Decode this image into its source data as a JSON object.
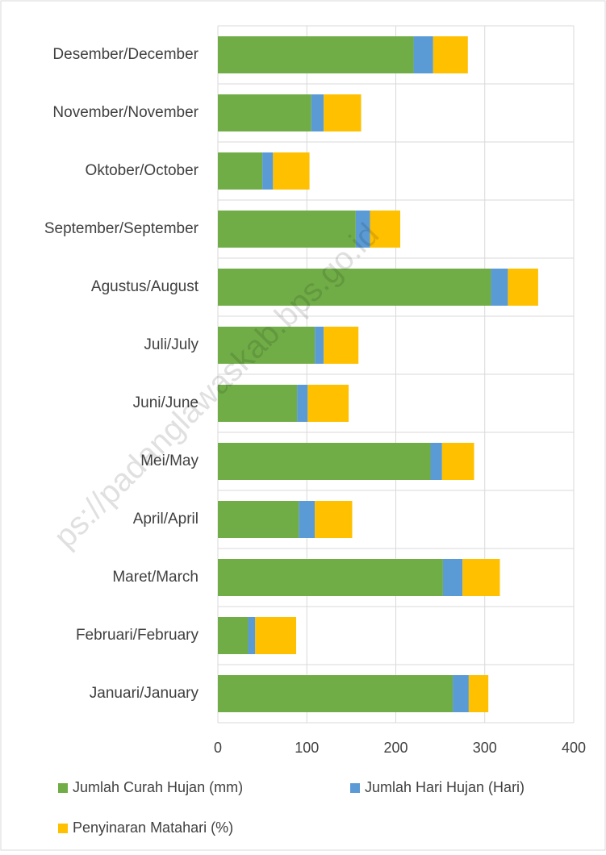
{
  "chart_data": {
    "type": "stacked_barh",
    "categories": [
      "Januari/January",
      "Februari/February",
      "Maret/March",
      "April/April",
      "Mei/May",
      "Juni/June",
      "Juli/July",
      "Agustus/August",
      "September/September",
      "Oktober/October",
      "November/November",
      "Desember/December"
    ],
    "series": [
      {
        "name": "Jumlah Curah Hujan (mm)",
        "color": "#70ad47",
        "values": [
          264,
          34,
          253,
          91,
          239,
          89,
          109,
          307,
          155,
          50,
          105,
          220
        ]
      },
      {
        "name": "Jumlah Hari Hujan (Hari)",
        "color": "#5b9bd5",
        "values": [
          18,
          8,
          22,
          18,
          13,
          12,
          10,
          19,
          16,
          12,
          14,
          22
        ]
      },
      {
        "name": "Penyinaran Matahari (%)",
        "color": "#ffc000",
        "values": [
          22,
          46,
          42,
          42,
          36,
          46,
          39,
          34,
          34,
          41,
          42,
          39
        ]
      }
    ],
    "xlim": [
      0,
      400
    ],
    "xticks": [
      0,
      100,
      200,
      300,
      400
    ],
    "grid": true,
    "watermark": "ps://padanglawaskab.bps.go.id"
  }
}
